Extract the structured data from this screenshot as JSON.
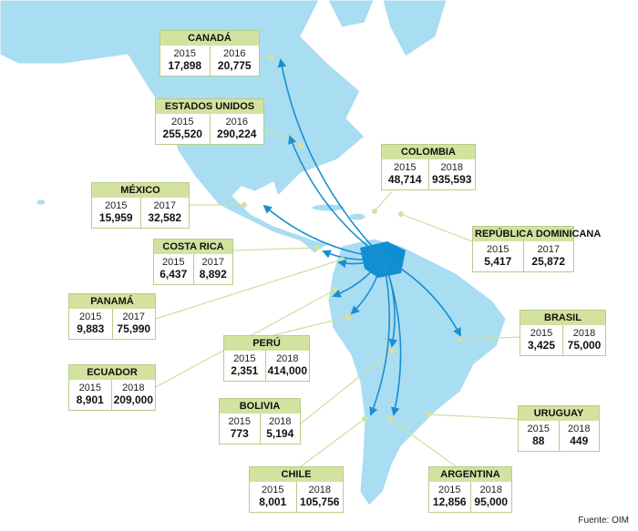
{
  "source": "Fuente: OIM",
  "countries": [
    {
      "name": "CANADÁ",
      "columns": [
        {
          "year": "2015",
          "value": "17,898"
        },
        {
          "year": "2016",
          "value": "20,775"
        }
      ]
    },
    {
      "name": "ESTADOS UNIDOS",
      "columns": [
        {
          "year": "2015",
          "value": "255,520"
        },
        {
          "year": "2016",
          "value": "290,224"
        }
      ]
    },
    {
      "name": "COLOMBIA",
      "columns": [
        {
          "year": "2015",
          "value": "48,714"
        },
        {
          "year": "2018",
          "value": "935,593"
        }
      ]
    },
    {
      "name": "MÉXICO",
      "columns": [
        {
          "year": "2015",
          "value": "15,959"
        },
        {
          "year": "2017",
          "value": "32,582"
        }
      ]
    },
    {
      "name": "REPÚBLICA DOMINICANA",
      "columns": [
        {
          "year": "2015",
          "value": "5,417"
        },
        {
          "year": "2017",
          "value": "25,872"
        }
      ]
    },
    {
      "name": "COSTA RICA",
      "columns": [
        {
          "year": "2015",
          "value": "6,437"
        },
        {
          "year": "2017",
          "value": "8,892"
        }
      ]
    },
    {
      "name": "PANAMÁ",
      "columns": [
        {
          "year": "2015",
          "value": "9,883"
        },
        {
          "year": "2017",
          "value": "75,990"
        }
      ]
    },
    {
      "name": "BRASIL",
      "columns": [
        {
          "year": "2015",
          "value": "3,425"
        },
        {
          "year": "2018",
          "value": "75,000"
        }
      ]
    },
    {
      "name": "PERÚ",
      "columns": [
        {
          "year": "2015",
          "value": "2,351"
        },
        {
          "year": "2018",
          "value": "414,000"
        }
      ]
    },
    {
      "name": "ECUADOR",
      "columns": [
        {
          "year": "2015",
          "value": "8,901"
        },
        {
          "year": "2018",
          "value": "209,000"
        }
      ]
    },
    {
      "name": "BOLIVIA",
      "columns": [
        {
          "year": "2015",
          "value": "773"
        },
        {
          "year": "2018",
          "value": "5,194"
        }
      ]
    },
    {
      "name": "URUGUAY",
      "columns": [
        {
          "year": "2015",
          "value": "88"
        },
        {
          "year": "2018",
          "value": "449"
        }
      ]
    },
    {
      "name": "CHILE",
      "columns": [
        {
          "year": "2015",
          "value": "8,001"
        },
        {
          "year": "2018",
          "value": "105,756"
        }
      ]
    },
    {
      "name": "ARGENTINA",
      "columns": [
        {
          "year": "2015",
          "value": "12,856"
        },
        {
          "year": "2018",
          "value": "95,000"
        }
      ]
    }
  ]
}
